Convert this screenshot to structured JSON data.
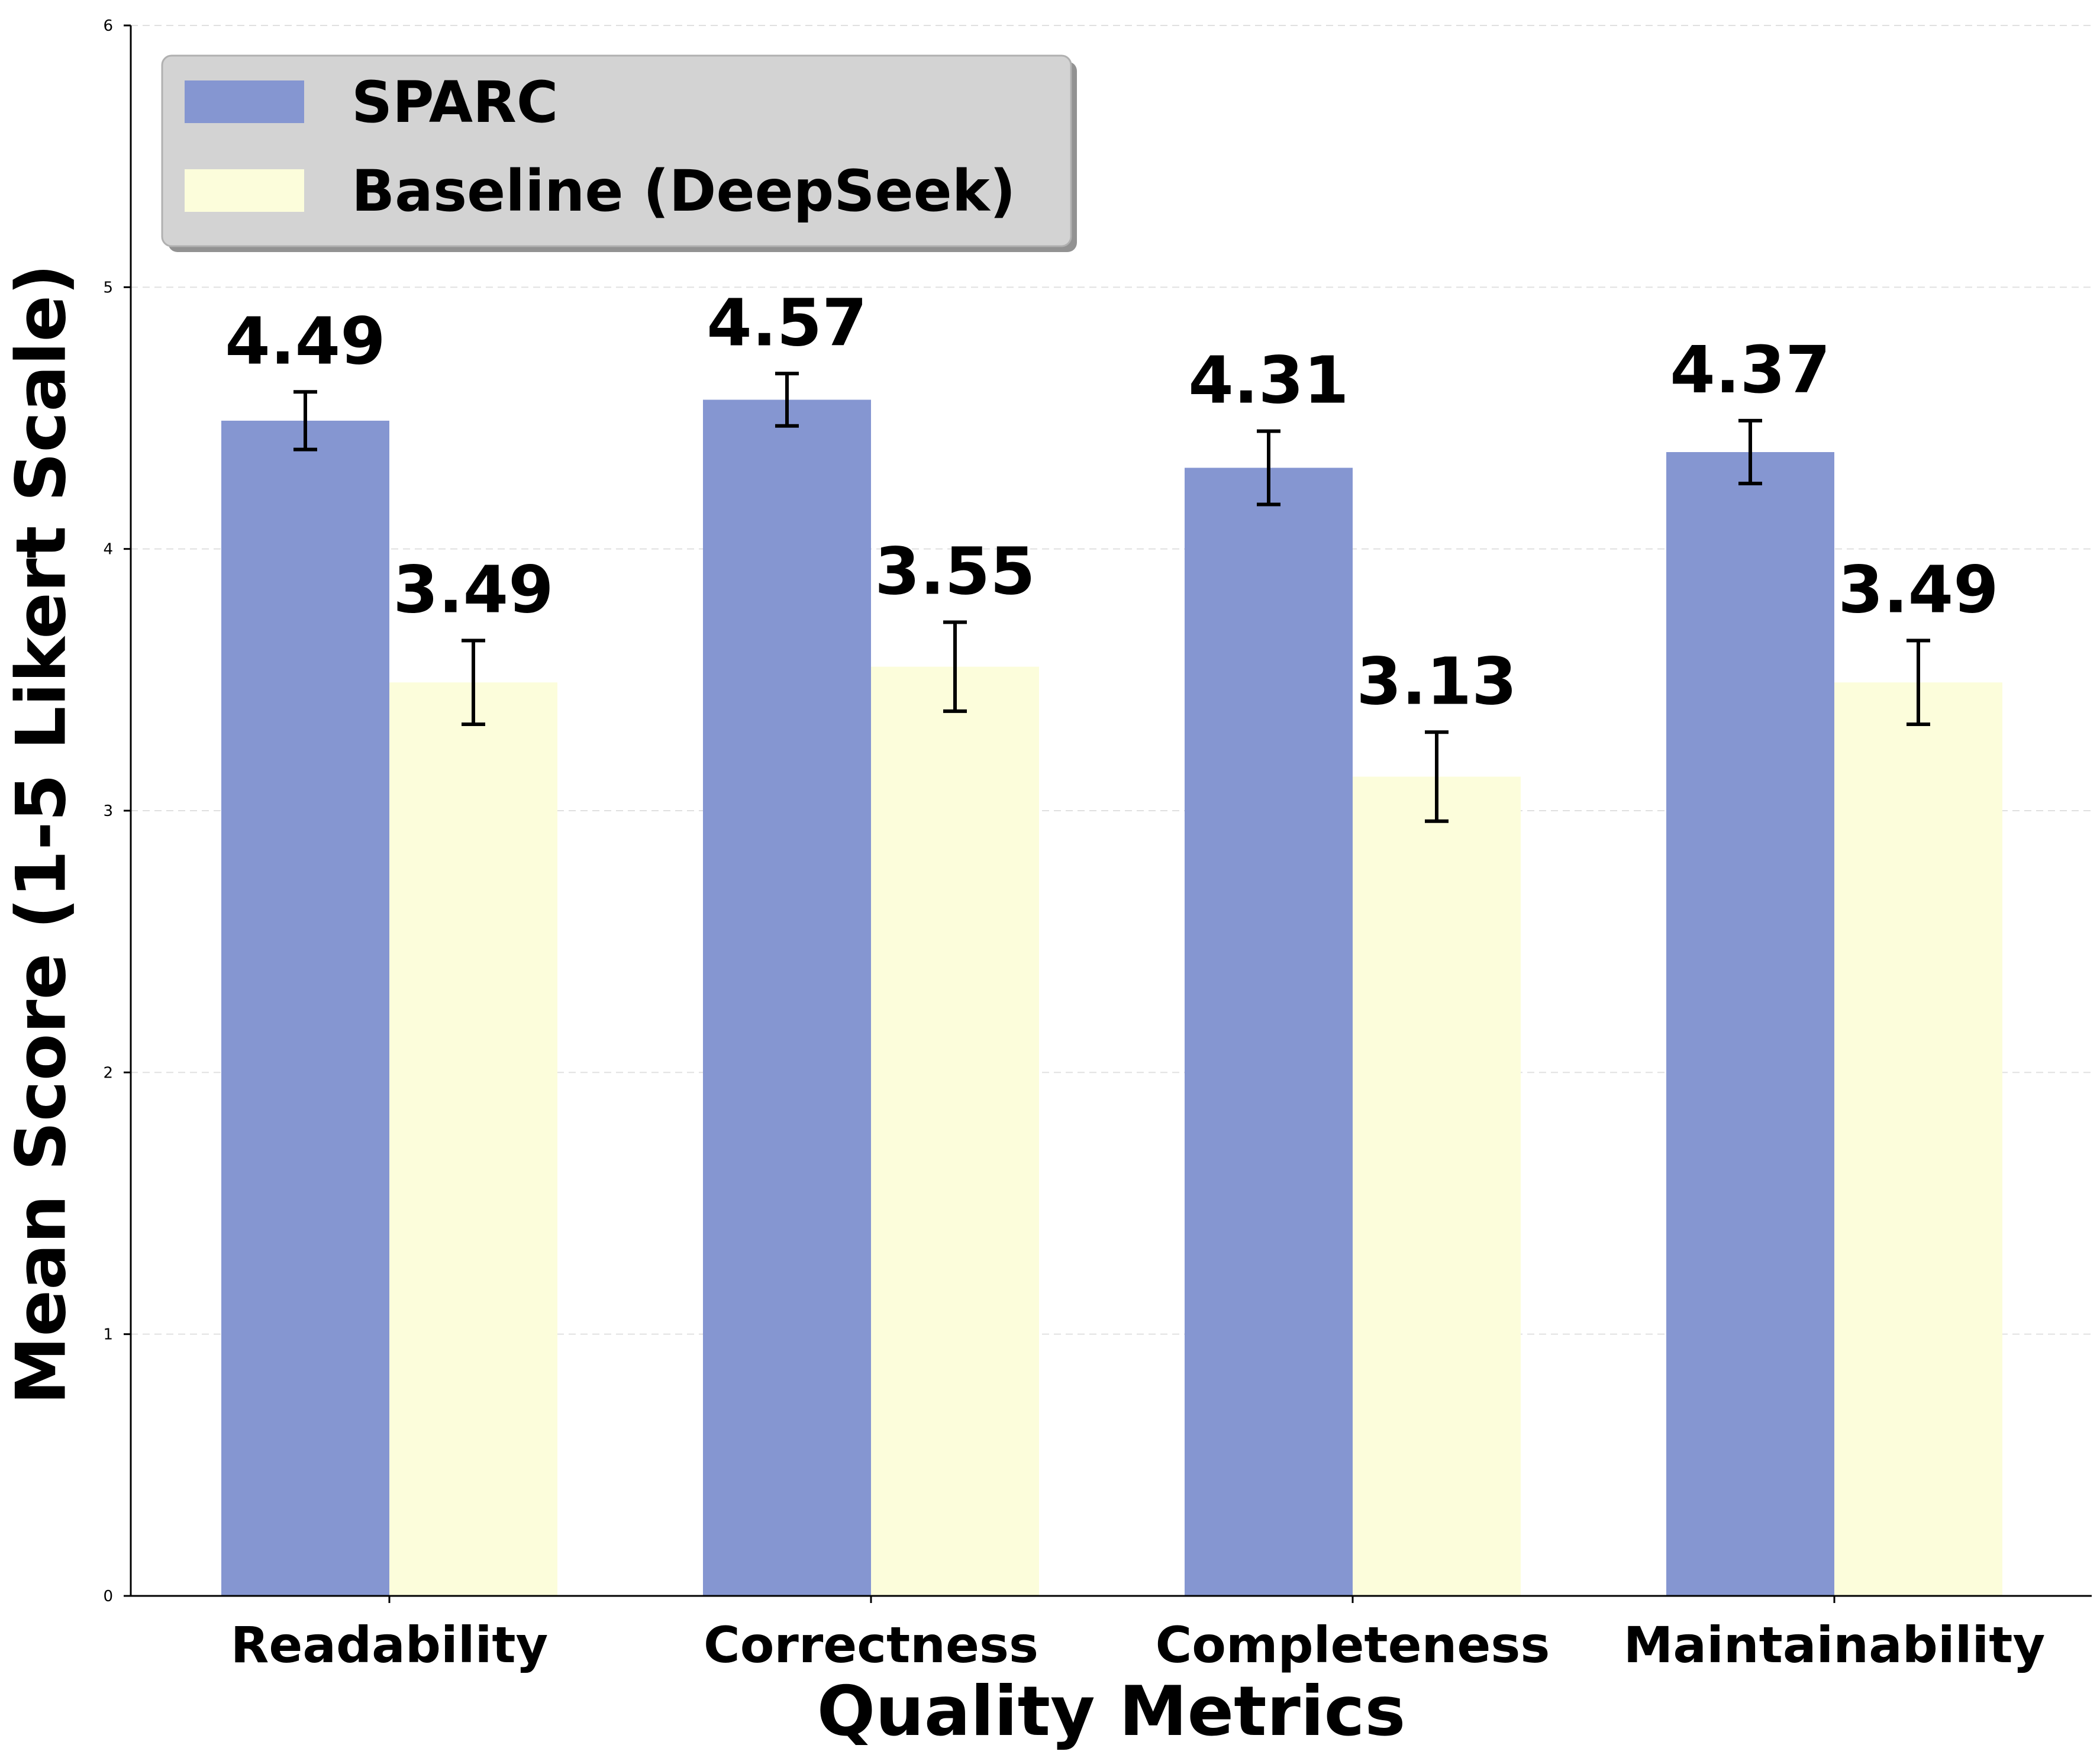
{
  "chart_data": {
    "type": "bar",
    "title": "",
    "xlabel": "Quality Metrics",
    "ylabel": "Mean Score (1-5 Likert Scale)",
    "ylim": [
      0,
      6
    ],
    "yticks": [
      0,
      1,
      2,
      3,
      4,
      5,
      6
    ],
    "grid": "horizontal-dashed",
    "legend_position": "top-left",
    "categories": [
      "Readability",
      "Correctness",
      "Completeness",
      "Maintainability"
    ],
    "series": [
      {
        "name": "SPARC",
        "color": "#8596d1",
        "values": [
          4.49,
          4.57,
          4.31,
          4.37
        ],
        "value_labels": [
          "4.49",
          "4.57",
          "4.31",
          "4.37"
        ],
        "error": [
          0.11,
          0.1,
          0.14,
          0.12
        ]
      },
      {
        "name": "Baseline (DeepSeek)",
        "color": "#fcfddb",
        "values": [
          3.49,
          3.55,
          3.13,
          3.49
        ],
        "value_labels": [
          "3.49",
          "3.55",
          "3.13",
          "3.49"
        ],
        "error": [
          0.16,
          0.17,
          0.17,
          0.16
        ]
      }
    ]
  }
}
